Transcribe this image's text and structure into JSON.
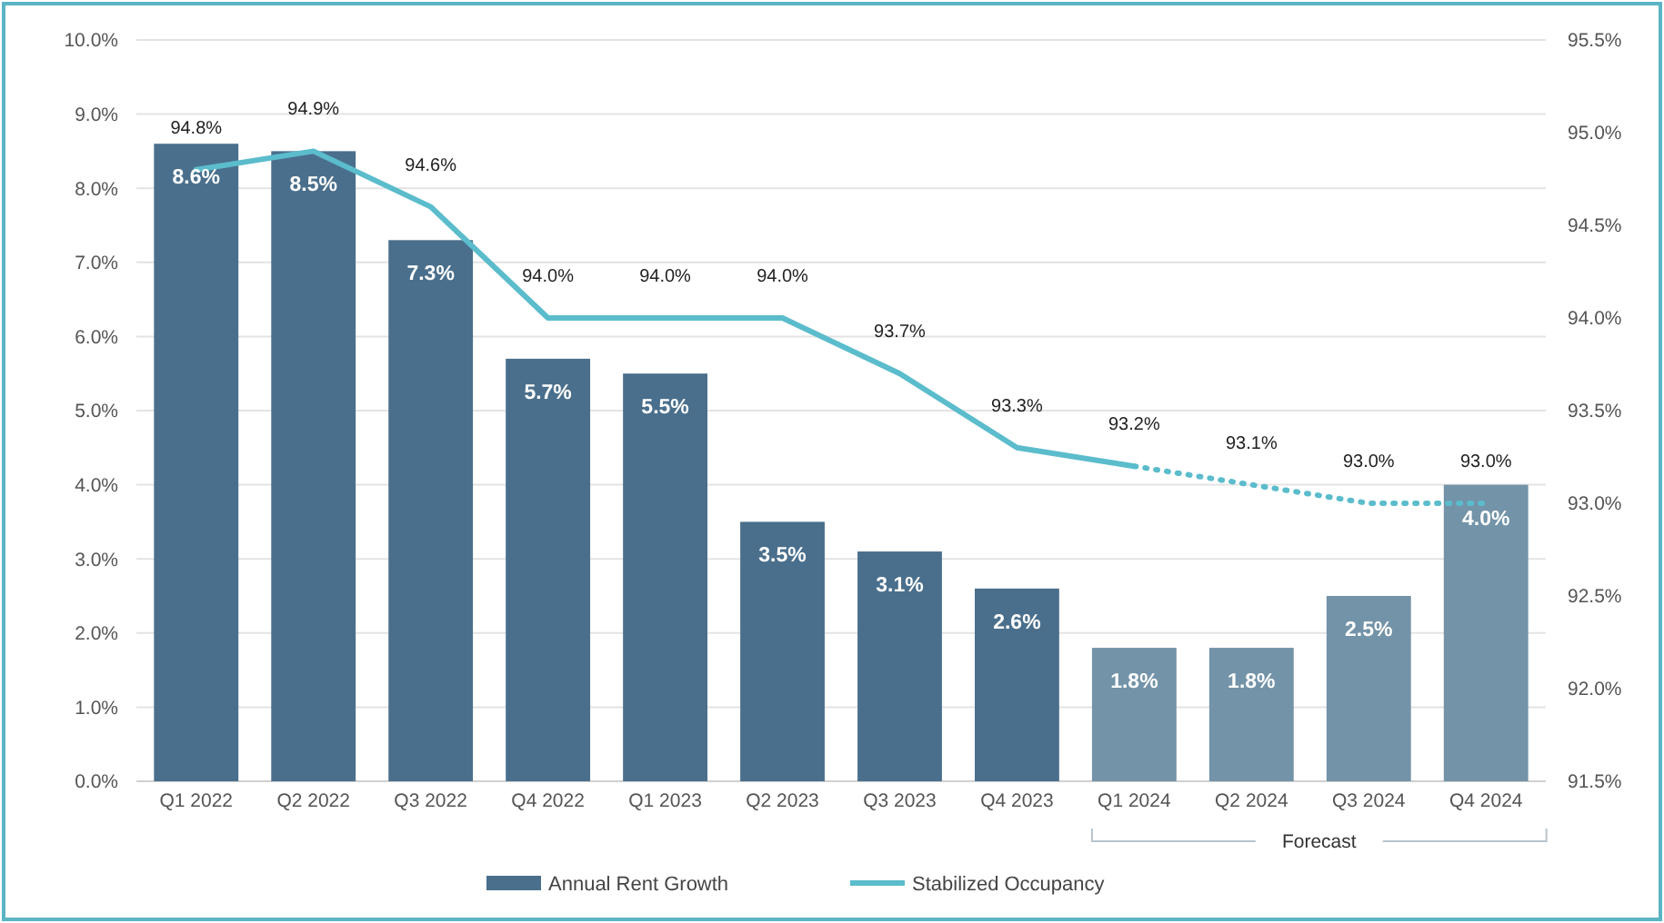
{
  "chart_data": {
    "type": "bar",
    "categories": [
      "Q1 2022",
      "Q2 2022",
      "Q3 2022",
      "Q4 2022",
      "Q1 2023",
      "Q2 2023",
      "Q3 2023",
      "Q4 2023",
      "Q1 2024",
      "Q2 2024",
      "Q3 2024",
      "Q4 2024"
    ],
    "series": [
      {
        "name": "Annual Rent Growth",
        "color": "#4a6f8c",
        "colors": [
          "#4a6f8c",
          "#4a6f8c",
          "#4a6f8c",
          "#4a6f8c",
          "#4a6f8c",
          "#4a6f8c",
          "#4a6f8c",
          "#4a6f8c",
          "#7393a8",
          "#7393a8",
          "#7393a8",
          "#7393a8"
        ],
        "values": [
          8.6,
          8.5,
          7.3,
          5.7,
          5.5,
          3.5,
          3.1,
          2.6,
          1.8,
          1.8,
          2.5,
          4.0
        ],
        "value_labels": [
          "8.6%",
          "8.5%",
          "7.3%",
          "5.7%",
          "5.5%",
          "3.5%",
          "3.1%",
          "2.6%",
          "1.8%",
          "1.8%",
          "2.5%",
          "4.0%"
        ]
      },
      {
        "name": "Stabilized Occupancy",
        "type": "line",
        "axis": "y2",
        "color": "#5bbccc",
        "line_style": "solid",
        "values": [
          94.8,
          94.9,
          94.6,
          94.0,
          94.0,
          94.0,
          93.7,
          93.3,
          93.2,
          null,
          null,
          null
        ],
        "value_labels": [
          "94.8%",
          "94.9%",
          "94.6%",
          "94.0%",
          "94.0%",
          "94.0%",
          "93.7%",
          "93.3%",
          "93.2%",
          null,
          null,
          null
        ]
      },
      {
        "type": "line",
        "axis": "y2",
        "color": "#5bbccc",
        "line_style": "dotted",
        "values": [
          null,
          null,
          null,
          null,
          null,
          null,
          null,
          null,
          93.2,
          93.1,
          93.0,
          93.0
        ],
        "value_labels": [
          null,
          null,
          null,
          null,
          null,
          null,
          null,
          null,
          null,
          "93.1%",
          "93.0%",
          "93.0%"
        ]
      }
    ],
    "ylim": [
      0,
      10
    ],
    "yticks": [
      {
        "value": 0,
        "label": "0.0%"
      },
      {
        "value": 1,
        "label": "1.0%"
      },
      {
        "value": 2,
        "label": "2.0%"
      },
      {
        "value": 3,
        "label": "3.0%"
      },
      {
        "value": 4,
        "label": "4.0%"
      },
      {
        "value": 5,
        "label": "5.0%"
      },
      {
        "value": 6,
        "label": "6.0%"
      },
      {
        "value": 7,
        "label": "7.0%"
      },
      {
        "value": 8,
        "label": "8.0%"
      },
      {
        "value": 9,
        "label": "9.0%"
      },
      {
        "value": 10,
        "label": "10.0%"
      }
    ],
    "y2lim": [
      91.5,
      95.5
    ],
    "y2ticks": [
      {
        "value": 91.5,
        "label": "91.5%"
      },
      {
        "value": 92,
        "label": "92.0%"
      },
      {
        "value": 92.5,
        "label": "92.5%"
      },
      {
        "value": 93,
        "label": "93.0%"
      },
      {
        "value": 93.5,
        "label": "93.5%"
      },
      {
        "value": 94,
        "label": "94.0%"
      },
      {
        "value": 94.5,
        "label": "94.5%"
      },
      {
        "value": 95,
        "label": "95.0%"
      },
      {
        "value": 95.5,
        "label": "95.5%"
      }
    ],
    "grid": "y",
    "legend": "bottom",
    "annotations": [
      "Forecast"
    ]
  }
}
